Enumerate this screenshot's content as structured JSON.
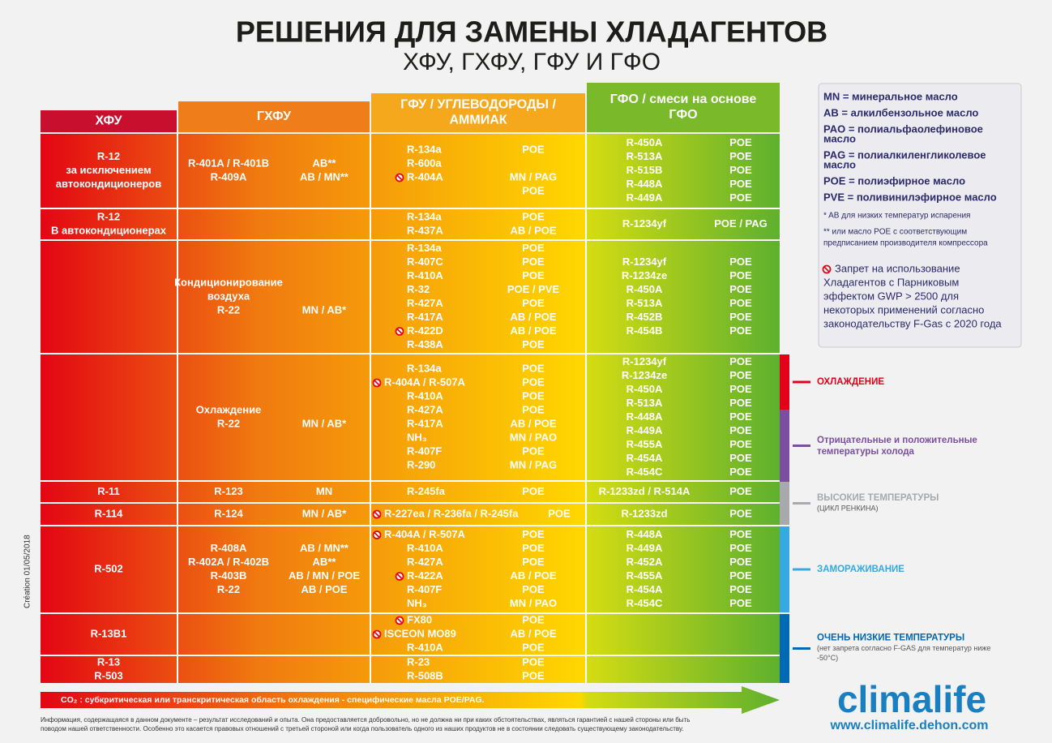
{
  "header": {
    "title": "РЕШЕНИЯ ДЛЯ ЗАМЕНЫ ХЛАДАГЕНТОВ",
    "subtitle": "ХФУ, ГХФУ, ГФУ И ГФО"
  },
  "columns": [
    {
      "lines": [
        "ХФУ"
      ],
      "color": "#c8102e"
    },
    {
      "lines": [
        "ГХФУ"
      ],
      "color": "#ef7d1a"
    },
    {
      "lines": [
        "ГФУ / УГЛЕВОДОРОДЫ /",
        "АММИАК"
      ],
      "color": "#f5a81c"
    },
    {
      "lines": [
        "ГФО / смеси на основе",
        "ГФО"
      ],
      "color": "#7ab929"
    }
  ],
  "rows": [
    {
      "cfc": [
        "R-12",
        "за исключением",
        "автокондиционеров"
      ],
      "hcfc": [
        {
          "name": "R-401A / R-401B",
          "oil": "AB**"
        },
        {
          "name": "R-409A",
          "oil": "AB / MN**"
        }
      ],
      "hfc": [
        {
          "name": "R-134a",
          "oil": "POE"
        },
        {
          "name": "R-600a"
        },
        {
          "name": "R-404A",
          "ban": true,
          "oil": "MN / PAG"
        },
        {
          "oil": "POE"
        }
      ],
      "hfo": [
        {
          "name": "R-450A",
          "oil": "POE"
        },
        {
          "name": "R-513A",
          "oil": "POE"
        },
        {
          "name": "R-515B",
          "oil": "POE"
        },
        {
          "name": "R-448A",
          "oil": "POE"
        },
        {
          "name": "R-449A",
          "oil": "POE"
        }
      ]
    },
    {
      "cfc": [
        "R-12",
        "В автокондиционерах"
      ],
      "hcfc": [],
      "hfc": [
        {
          "name": "R-134a",
          "oil": "POE"
        },
        {
          "name": "R-437A",
          "oil": "AB / POE"
        }
      ],
      "hfo": [
        {
          "name": "R-1234yf",
          "oil": "POE / PAG"
        }
      ]
    },
    {
      "cfc": [],
      "hcfc": [
        {
          "name": "Кондиционирование"
        },
        {
          "name": "воздуха"
        },
        {
          "name": "R-22",
          "oil": "MN / AB*"
        }
      ],
      "hfc": [
        {
          "name": "R-134a",
          "oil": "POE"
        },
        {
          "name": "R-407C",
          "oil": "POE"
        },
        {
          "name": "R-410A",
          "oil": "POE"
        },
        {
          "name": "R-32",
          "oil": "POE / PVE"
        },
        {
          "name": "R-427A",
          "oil": "POE"
        },
        {
          "name": "R-417A",
          "oil": "AB / POE"
        },
        {
          "name": "R-422D",
          "ban": true,
          "oil": "AB / POE"
        },
        {
          "name": "R-438A",
          "oil": "POE"
        }
      ],
      "hfo": [
        {
          "name": "R-1234yf",
          "oil": "POE"
        },
        {
          "name": "R-1234ze",
          "oil": "POE"
        },
        {
          "name": "R-450A",
          "oil": "POE"
        },
        {
          "name": "R-513A",
          "oil": "POE"
        },
        {
          "name": "R-452B",
          "oil": "POE"
        },
        {
          "name": "R-454B",
          "oil": "POE"
        }
      ]
    },
    {
      "cfc": [],
      "hcfc": [
        {
          "name": "Охлаждение"
        },
        {
          "name": "R-22",
          "oil": "MN / AB*"
        }
      ],
      "hfc": [
        {
          "name": "R-134a",
          "oil": "POE"
        },
        {
          "name": "R-404A / R-507A",
          "ban": true,
          "oil": "POE"
        },
        {
          "name": "R-410A",
          "oil": "POE"
        },
        {
          "name": "R-427A",
          "oil": "POE"
        },
        {
          "name": "R-417A",
          "oil": "AB / POE"
        },
        {
          "name": "NH₃",
          "oil": "MN / PAO"
        },
        {
          "name": "R-407F",
          "oil": "POE"
        },
        {
          "name": "R-290",
          "oil": "MN / PAG"
        }
      ],
      "hfo": [
        {
          "name": "R-1234yf",
          "oil": "POE"
        },
        {
          "name": "R-1234ze",
          "oil": "POE"
        },
        {
          "name": "R-450A",
          "oil": "POE"
        },
        {
          "name": "R-513A",
          "oil": "POE"
        },
        {
          "name": "R-448A",
          "oil": "POE"
        },
        {
          "name": "R-449A",
          "oil": "POE"
        },
        {
          "name": "R-455A",
          "oil": "POE"
        },
        {
          "name": "R-454A",
          "oil": "POE"
        },
        {
          "name": "R-454C",
          "oil": "POE"
        }
      ]
    },
    {
      "cfc": [
        "R-11"
      ],
      "hcfc": [
        {
          "name": "R-123",
          "oil": "MN"
        }
      ],
      "hfc": [
        {
          "name": "R-245fa",
          "oil": "POE"
        }
      ],
      "hfo": [
        {
          "name": "R-1233zd / R-514A",
          "oil": "POE"
        }
      ]
    },
    {
      "cfc": [
        "R-114"
      ],
      "hcfc": [
        {
          "name": "R-124",
          "oil": "MN / AB*"
        }
      ],
      "hfc": [
        {
          "name": "R-227ea / R-236fa / R-245fa",
          "ban": true,
          "oil": "POE"
        }
      ],
      "hfo": [
        {
          "name": "R-1233zd",
          "oil": "POE"
        }
      ]
    },
    {
      "cfc": [
        "R-502"
      ],
      "hcfc": [
        {
          "name": "R-408A",
          "oil": "AB / MN**"
        },
        {
          "name": "R-402A / R-402B",
          "oil": "AB**"
        },
        {
          "name": "R-403B",
          "oil": "AB / MN / POE"
        },
        {
          "name": "R-22",
          "oil": "AB / POE"
        }
      ],
      "hfc": [
        {
          "name": "R-404A / R-507A",
          "ban": true,
          "oil": "POE"
        },
        {
          "name": "R-410A",
          "oil": "POE"
        },
        {
          "name": "R-427A",
          "oil": "POE"
        },
        {
          "name": "R-422A",
          "ban": true,
          "oil": "AB / POE"
        },
        {
          "name": "R-407F",
          "oil": "POE"
        },
        {
          "name": "NH₃",
          "oil": "MN / PAO"
        }
      ],
      "hfo": [
        {
          "name": "R-448A",
          "oil": "POE"
        },
        {
          "name": "R-449A",
          "oil": "POE"
        },
        {
          "name": "R-452A",
          "oil": "POE"
        },
        {
          "name": "R-455A",
          "oil": "POE"
        },
        {
          "name": "R-454A",
          "oil": "POE"
        },
        {
          "name": "R-454C",
          "oil": "POE"
        }
      ]
    },
    {
      "cfc": [
        "R-13B1"
      ],
      "hcfc": [],
      "hfc": [
        {
          "name": "FX80",
          "ban": true,
          "oil": "POE"
        },
        {
          "name": "ISCEON MO89",
          "ban": true,
          "oil": "AB / POE"
        },
        {
          "name": "R-410A",
          "oil": "POE"
        }
      ],
      "hfo": []
    },
    {
      "cfc": [
        "R-13",
        "R-503"
      ],
      "hcfc": [],
      "hfc": [
        {
          "name": "R-23",
          "oil": "POE"
        },
        {
          "name": "R-508B",
          "oil": "POE"
        }
      ],
      "hfo": []
    }
  ],
  "applications": [
    {
      "lines": [
        "ОХЛАЖДЕНИЕ"
      ],
      "color": "#e2001a"
    },
    {
      "lines": [
        "Отрицательные и положительные",
        "температуры холода"
      ],
      "color": "#7b4fa0"
    },
    {
      "lines": [
        "ВЫСОКИЕ ТЕМПЕРАТУРЫ"
      ],
      "sub": [
        "(ЦИКЛ РЕНКИНА)"
      ],
      "color": "#a7a9ac"
    },
    {
      "lines": [
        "ЗАМОРАЖИВАНИЕ"
      ],
      "color": "#36a9e1"
    },
    {
      "lines": [
        "ОЧЕНЬ НИЗКИЕ ТЕМПЕРАТУРЫ"
      ],
      "sub": [
        "(нет запрета согласно F-GAS для температур ниже",
        "-50°C)"
      ],
      "color": "#0069b4"
    }
  ],
  "legend": {
    "items": [
      [
        "MN = минеральное масло"
      ],
      [
        "AB = алкилбензольное масло"
      ],
      [
        "PAO = полиальфаолефиновое",
        "масло"
      ],
      [
        "PAG = полиалкиленгликолевое",
        "масло"
      ],
      [
        "POE = полиэфирное масло"
      ],
      [
        "PVE = поливинилэфирное масло"
      ]
    ],
    "notes": [
      [
        "* AB для низких температур испарения"
      ],
      [
        "** или масло POE с соответствующим",
        "предписанием производителя компрессора"
      ]
    ],
    "ban_note": [
      "Запрет на использование",
      "Хладагентов с Парниковым",
      "эффектом GWP > 2500 для",
      "некоторых применений согласно",
      "законодательству F-Gas с 2020 года"
    ]
  },
  "co2_note": "CO₂ : субкритическая или транскритическая область охлаждения - специфические масла POE/PAG.",
  "creation": "Création 01/05/2018",
  "disclaimer": [
    "Информация, содержащаяся в данном документе – результат исследований и опыта. Она предоставляется добровольно, но не должна ни при каких обстоятельствах, являться гарантией с нашей стороны или быть",
    "поводом нашей ответственности. Особенно это касается правовых отношений с третьей стороной или когда пользователь одного из наших продуктов не в состоянии следовать существующему законодательству."
  ],
  "logo": {
    "name": "climalife",
    "url": "www.climalife.dehon.com"
  }
}
